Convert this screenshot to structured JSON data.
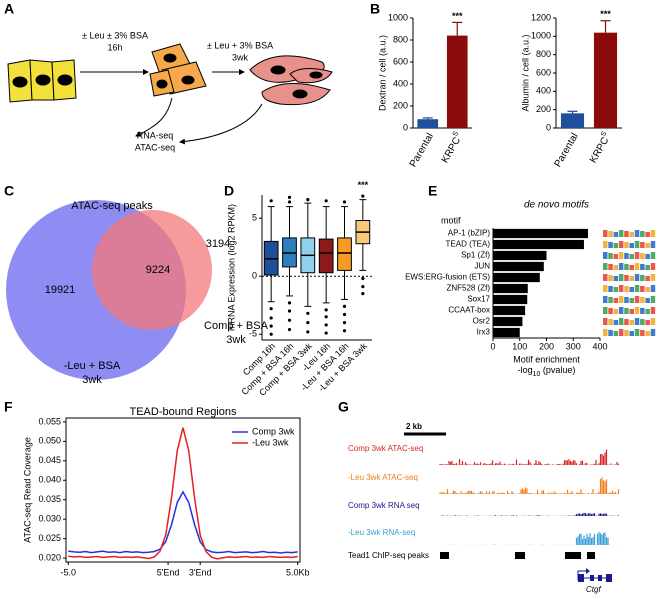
{
  "panel_labels": [
    "A",
    "B",
    "C",
    "D",
    "E",
    "F",
    "G"
  ],
  "diagram": {
    "step1": [
      "± Leu ± 3% BSA",
      "16h"
    ],
    "step2": [
      "± Leu + 3% BSA",
      "3wk"
    ],
    "assays": [
      "RNA-seq",
      "ATAC-seq"
    ]
  },
  "venn": {
    "title": "ATAC-seq peaks",
    "set_a": [
      "-Leu + BSA",
      "3wk"
    ],
    "set_b": [
      "Comp + BSA",
      "3wk"
    ],
    "only_a": "19921",
    "both": "9224",
    "only_b": "3194",
    "color_a": "#7b78f2",
    "color_b": "#f4787a"
  },
  "chart_data": [
    {
      "type": "bar",
      "ylabel": "Dextran / cell (a.u.)",
      "categories": [
        {
          "text": "Parental"
        },
        {
          "text": "KRPC",
          "sup": "S"
        }
      ],
      "values": [
        80,
        840
      ],
      "errors": [
        12,
        120
      ],
      "colors": [
        "#1f4e9a",
        "#8b0a0a"
      ],
      "ylim": [
        0,
        1000
      ],
      "yticks": [
        0,
        200,
        400,
        600,
        800,
        1000
      ],
      "annotation": "***",
      "annotation_index": 1
    },
    {
      "type": "bar",
      "ylabel": "Albumin / cell (a.u.)",
      "categories": [
        {
          "text": "Parental"
        },
        {
          "text": "KRPC",
          "sup": "S"
        }
      ],
      "values": [
        160,
        1040
      ],
      "errors": [
        22,
        130
      ],
      "colors": [
        "#1f4e9a",
        "#8b0a0a"
      ],
      "ylim": [
        0,
        1200
      ],
      "yticks": [
        0,
        200,
        400,
        600,
        800,
        1000,
        1200
      ],
      "annotation": "***",
      "annotation_index": 1
    },
    {
      "type": "box",
      "ylabel": "mRNA Expression (log2 RPKM)",
      "categories": [
        "Comp 16h",
        "Comp + BSA 16h",
        "Comp + BSA 3wk",
        "-Leu 16h",
        "-Leu + BSA 16h",
        "-Leu + BSA 3wk"
      ],
      "colors": [
        "#1f4e9a",
        "#2f7fbf",
        "#8fd0ef",
        "#8b1a1a",
        "#f39c1f",
        "#f7c97a"
      ],
      "boxes": [
        {
          "low": -2.2,
          "q1": 0.1,
          "median": 1.5,
          "q3": 3.0,
          "high": 6.0,
          "outliers": [
            -2.8,
            -3.6,
            -4.3,
            -5.0,
            6.5
          ]
        },
        {
          "low": -1.7,
          "q1": 0.8,
          "median": 2.0,
          "q3": 3.3,
          "high": 6.0,
          "outliers": [
            -2.3,
            -3.0,
            -3.8,
            -4.6,
            6.4,
            6.8
          ]
        },
        {
          "low": -2.6,
          "q1": 0.3,
          "median": 1.8,
          "q3": 3.3,
          "high": 6.3,
          "outliers": [
            -3.2,
            -4.0,
            -4.8,
            6.6
          ]
        },
        {
          "low": -2.3,
          "q1": 0.3,
          "median": 2.0,
          "q3": 3.2,
          "high": 6.0,
          "outliers": [
            -2.9,
            -3.5,
            -4.2,
            -4.9,
            6.5
          ]
        },
        {
          "low": -2.0,
          "q1": 0.5,
          "median": 2.0,
          "q3": 3.3,
          "high": 6.0,
          "outliers": [
            -2.6,
            -3.3,
            -4.0,
            -4.7,
            6.4
          ]
        },
        {
          "low": 0.5,
          "q1": 2.8,
          "median": 3.8,
          "q3": 4.8,
          "high": 6.6,
          "outliers": [
            -0.2,
            -0.9,
            -1.5,
            6.9
          ]
        }
      ],
      "ylim": [
        -5.5,
        7.0
      ],
      "yticks": [
        -5,
        0,
        5
      ],
      "reference_line": 0,
      "annotation": "***",
      "annotation_index": 5
    },
    {
      "type": "hbar",
      "title": "de novo motifs",
      "category_header": "motif",
      "categories": [
        "AP-1 (bZIP)",
        "TEAD (TEA)",
        "Sp1 (Zf)",
        "JUN",
        "EWS:ERG-fusion (ETS)",
        "ZNF528 (Zf)",
        "Sox17",
        "CCAAT-box",
        "Osr2",
        "Irx3"
      ],
      "values": [
        355,
        340,
        200,
        190,
        175,
        130,
        128,
        120,
        110,
        100
      ],
      "color": "#000000",
      "xlim": [
        0,
        400
      ],
      "xticks": [
        0,
        100,
        200,
        300,
        400
      ],
      "xlabel": "Motif enrichment",
      "xlabel2": {
        "pre": "-log",
        "sub": "10",
        "post": " (pvalue)"
      }
    },
    {
      "type": "line",
      "title": "TEAD-bound Regions",
      "ylabel": "ATAC-seq Read Coverage",
      "x": [
        -5,
        -4.75,
        -4.5,
        -4.25,
        -4,
        -3.75,
        -3.5,
        -3.25,
        -3,
        -2.75,
        -2.5,
        -2.25,
        -2,
        -1.75,
        -1.5,
        -1.25,
        -1,
        -0.75,
        -0.5,
        -0.25,
        0,
        0.25,
        0.5,
        0.75,
        1,
        1.25,
        1.5,
        1.75,
        2,
        2.25,
        2.5,
        2.75,
        3,
        3.25,
        3.5,
        3.75,
        4,
        4.25,
        4.5,
        4.75,
        5
      ],
      "series": [
        {
          "name": "Comp 3wk",
          "color": "#2233dd",
          "values": [
            0.0218,
            0.0216,
            0.0215,
            0.0217,
            0.0214,
            0.0216,
            0.0218,
            0.0215,
            0.0216,
            0.0214,
            0.0217,
            0.0215,
            0.0216,
            0.0214,
            0.0215,
            0.0217,
            0.0223,
            0.0243,
            0.0286,
            0.0343,
            0.037,
            0.0343,
            0.0287,
            0.0242,
            0.0222,
            0.0216,
            0.0214,
            0.0215,
            0.0217,
            0.0214,
            0.0215,
            0.0216,
            0.0214,
            0.0215,
            0.0217,
            0.0214,
            0.0215,
            0.0213,
            0.0215,
            0.0214,
            0.0216
          ]
        },
        {
          "name": "-Leu 3wk",
          "color": "#e02222",
          "values": [
            0.0205,
            0.0203,
            0.0204,
            0.0202,
            0.0203,
            0.0204,
            0.0202,
            0.0203,
            0.0204,
            0.0202,
            0.0203,
            0.0202,
            0.0203,
            0.0201,
            0.0199,
            0.0203,
            0.0218,
            0.026,
            0.0355,
            0.0476,
            0.0535,
            0.0476,
            0.0356,
            0.0259,
            0.0217,
            0.0202,
            0.0198,
            0.0201,
            0.0203,
            0.0202,
            0.0203,
            0.0204,
            0.0202,
            0.0203,
            0.0202,
            0.0204,
            0.0203,
            0.0202,
            0.0203,
            0.0202,
            0.0204
          ]
        }
      ],
      "xlim": [
        -5.1,
        5.1
      ],
      "xticks": [
        {
          "value": -5,
          "label": "-5.0"
        },
        {
          "value": -0.65,
          "label": "5'End"
        },
        {
          "value": 0.75,
          "label": "3'End"
        },
        {
          "value": 5,
          "label": "5.0Kb"
        }
      ],
      "ylim": [
        0.019,
        0.056
      ],
      "yticks": [
        {
          "value": 0.02,
          "label": "0.020"
        },
        0.025,
        {
          "value": 0.03,
          "label": "0.030"
        },
        0.035,
        {
          "value": 0.04,
          "label": "0.040"
        },
        0.045,
        {
          "value": 0.05,
          "label": "0.050"
        },
        0.055
      ],
      "legend": "upper right"
    }
  ],
  "tracks": {
    "scale": "2 kb",
    "labels": [
      {
        "text": "Comp 3wk ATAC-seq",
        "color": "#d62728"
      },
      {
        "text": "-Leu 3wk ATAC-seq",
        "color": "#f08020"
      },
      {
        "text": "Comp 3wk RNA seq",
        "color": "#1a1a8c"
      },
      {
        "text": "-Leu 3wk RNA-seq",
        "color": "#3aa0d8"
      },
      {
        "text": "Tead1 ChIP-seq peaks",
        "color": "#000000"
      }
    ],
    "gene": "Ctgf"
  }
}
